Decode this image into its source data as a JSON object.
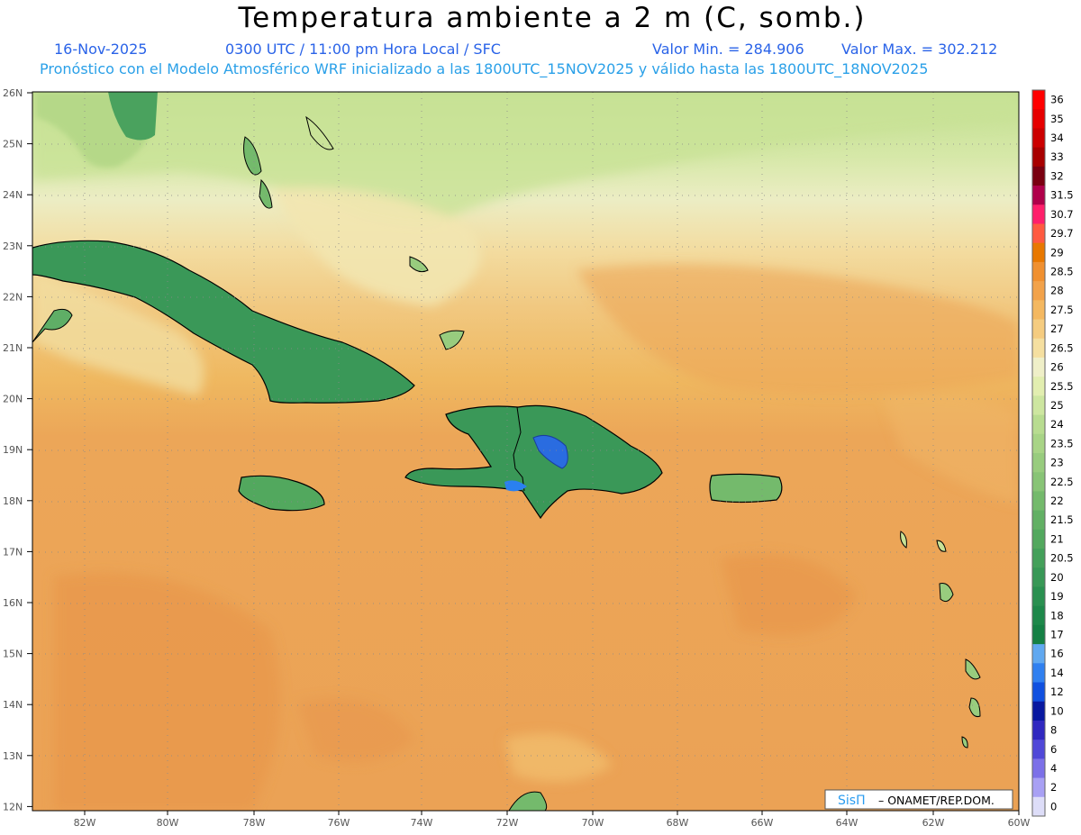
{
  "header": {
    "title": "Temperatura ambiente a 2 m (C, somb.)",
    "date": "16-Nov-2025",
    "time_info": "0300 UTC / 11:00 pm Hora Local / SFC",
    "min_label": "Valor Min. = 284.906",
    "max_label": "Valor Max. = 302.212",
    "model_info": "Pronóstico con el Modelo Atmosférico WRF inicializado a las 1800UTC_15NOV2025 y válido hasta las   1800UTC_18NOV2025"
  },
  "map": {
    "lat_labels": [
      "26N",
      "25N",
      "24N",
      "23N",
      "22N",
      "21N",
      "20N",
      "19N",
      "18N",
      "17N",
      "16N",
      "15N",
      "14N",
      "13N",
      "12N"
    ],
    "lon_labels": [
      "82W",
      "80W",
      "78W",
      "76W",
      "74W",
      "72W",
      "70W",
      "68W",
      "66W",
      "64W",
      "62W",
      "60W"
    ],
    "credit_logo": "SisΠ",
    "credit_text": "– ONAMET/REP.DOM."
  },
  "colorbar": {
    "labels": [
      "36",
      "35",
      "34",
      "33",
      "32",
      "31.5",
      "30.7",
      "29.7",
      "29",
      "28.5",
      "28",
      "27.5",
      "27",
      "26.5",
      "26",
      "25.5",
      "25",
      "24",
      "23.5",
      "23",
      "22.5",
      "22",
      "21.5",
      "21",
      "20.5",
      "20",
      "19",
      "18",
      "17",
      "16",
      "14",
      "12",
      "10",
      "8",
      "6",
      "4",
      "2",
      "0"
    ],
    "colors": [
      "#ff0000",
      "#e60000",
      "#cc0000",
      "#a80000",
      "#7a0010",
      "#b0004a",
      "#ff1f6b",
      "#ff5a40",
      "#e87800",
      "#f09030",
      "#f2a24a",
      "#f4b860",
      "#f5cc80",
      "#f5dfa0",
      "#efefc8",
      "#e2eeb0",
      "#cde6a0",
      "#b8dc90",
      "#a8d486",
      "#98cc7e",
      "#88c476",
      "#74ba6c",
      "#62b064",
      "#52a85e",
      "#44a05a",
      "#389856",
      "#2a9050",
      "#1e884a",
      "#158044",
      "#60a8f0",
      "#3080f0",
      "#1050e0",
      "#0818a0",
      "#3028c0",
      "#5048d8",
      "#7c70e8",
      "#a8a0f4",
      "#ddddf8"
    ]
  }
}
